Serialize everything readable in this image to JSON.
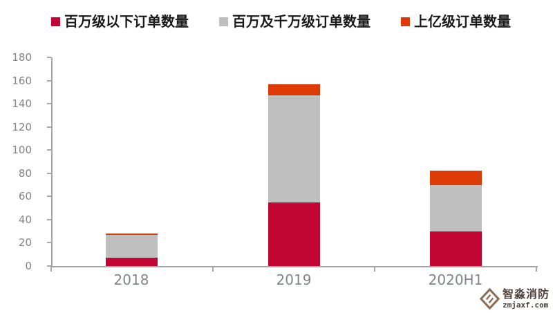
{
  "chart_data": {
    "type": "bar",
    "stacked": true,
    "title": "",
    "categories": [
      "2018",
      "2019",
      "2020H1"
    ],
    "series": [
      {
        "name": "百万级以下订单数量",
        "color": "#c20634",
        "values": [
          7,
          55,
          30
        ]
      },
      {
        "name": "百万及千万级订单数量",
        "color": "#bfbfbf",
        "values": [
          20,
          92,
          40
        ]
      },
      {
        "name": "上亿级订单数量",
        "color": "#dd3b05",
        "values": [
          1,
          10,
          12
        ]
      }
    ],
    "ylim": [
      0,
      180
    ],
    "ytick_step": 20,
    "ytick_labels": [
      "0",
      "20",
      "40",
      "60",
      "80",
      "100",
      "120",
      "140",
      "160",
      "180"
    ],
    "legend_position": "top",
    "grid": false
  },
  "watermark": {
    "brand": "智淼消防",
    "site": "zmjaxf.com",
    "logo_color": "#8d6c54"
  },
  "colors": {
    "axis": "#a6a6a6",
    "y_tick_label": "#828282",
    "x_tick_label": "#80858c",
    "legend_text": "#1a1a1a",
    "background": "#ffffff"
  }
}
